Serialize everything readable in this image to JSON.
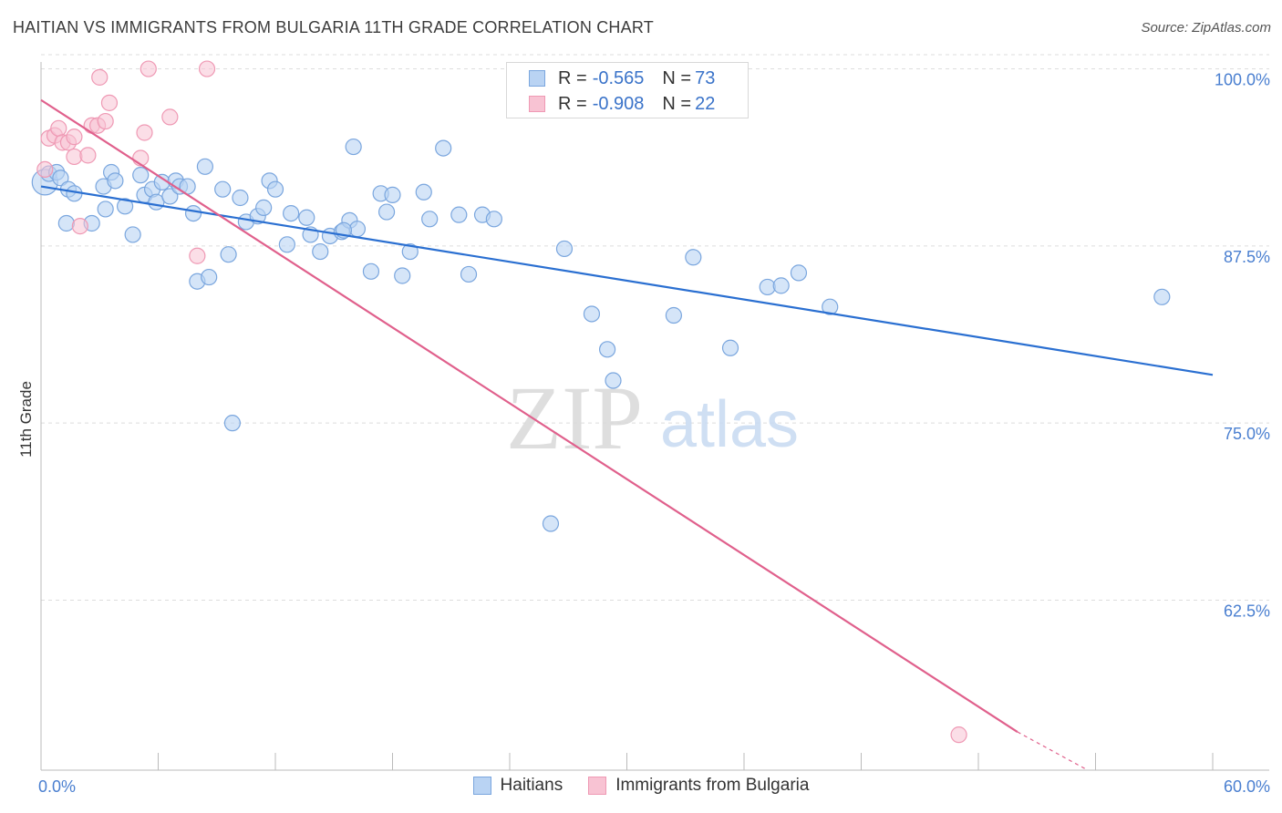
{
  "title": "HAITIAN VS IMMIGRANTS FROM BULGARIA 11TH GRADE CORRELATION CHART",
  "source": "Source: ZipAtlas.com",
  "watermark": {
    "zip": "ZIP",
    "atlas": "atlas"
  },
  "legend": {
    "haitians": {
      "r_label": "R = ",
      "r_value": "-0.565",
      "n_label": "N = ",
      "n_value": "73"
    },
    "bulgaria": {
      "r_label": "R = ",
      "r_value": "-0.908",
      "n_label": "N = ",
      "n_value": "22"
    }
  },
  "colors": {
    "blue_fill": "#b9d3f3",
    "blue_stroke": "#7aa6de",
    "blue_line": "#2a6fd1",
    "pink_fill": "#f8c3d3",
    "pink_stroke": "#ef99b4",
    "pink_line": "#e0608c",
    "axis_text": "#4a7fd0",
    "grid": "#dddddd"
  },
  "chart_data": {
    "type": "scatter",
    "title": "HAITIAN VS IMMIGRANTS FROM BULGARIA 11TH GRADE CORRELATION CHART",
    "xlabel": "",
    "ylabel": "11th Grade",
    "xlim": [
      0,
      60
    ],
    "ylim": [
      50.5,
      101
    ],
    "x_tick_labels": [
      "0.0%",
      "60.0%"
    ],
    "y_ticks": [
      100,
      87.5,
      75,
      62.5
    ],
    "y_tick_labels": [
      "100.0%",
      "87.5%",
      "75.0%",
      "62.5%"
    ],
    "series": [
      {
        "name": "Haitians",
        "r": -0.565,
        "n": 73,
        "trend": {
          "x": [
            0,
            60
          ],
          "y": [
            91.7,
            78.4
          ]
        },
        "points": [
          [
            0.2,
            92.0
          ],
          [
            0.4,
            92.6
          ],
          [
            0.8,
            92.7
          ],
          [
            1.0,
            92.3
          ],
          [
            1.4,
            91.5
          ],
          [
            1.7,
            91.2
          ],
          [
            1.3,
            89.1
          ],
          [
            2.6,
            89.1
          ],
          [
            3.2,
            91.7
          ],
          [
            3.3,
            90.1
          ],
          [
            3.6,
            92.7
          ],
          [
            3.8,
            92.1
          ],
          [
            4.3,
            90.3
          ],
          [
            4.7,
            88.3
          ],
          [
            5.1,
            92.5
          ],
          [
            5.3,
            91.1
          ],
          [
            5.7,
            91.5
          ],
          [
            5.9,
            90.6
          ],
          [
            6.2,
            92.0
          ],
          [
            6.6,
            91.0
          ],
          [
            6.9,
            92.1
          ],
          [
            7.1,
            91.7
          ],
          [
            7.5,
            91.7
          ],
          [
            7.8,
            89.8
          ],
          [
            8.4,
            93.1
          ],
          [
            8.0,
            85.0
          ],
          [
            8.6,
            85.3
          ],
          [
            9.3,
            91.5
          ],
          [
            9.6,
            86.9
          ],
          [
            10.2,
            90.9
          ],
          [
            10.5,
            89.2
          ],
          [
            11.1,
            89.6
          ],
          [
            11.4,
            90.2
          ],
          [
            11.7,
            92.1
          ],
          [
            12.0,
            91.5
          ],
          [
            12.8,
            89.8
          ],
          [
            12.6,
            87.6
          ],
          [
            13.8,
            88.3
          ],
          [
            13.6,
            89.5
          ],
          [
            14.3,
            87.1
          ],
          [
            14.8,
            88.2
          ],
          [
            15.4,
            88.5
          ],
          [
            15.8,
            89.3
          ],
          [
            16.2,
            88.7
          ],
          [
            16.0,
            94.5
          ],
          [
            16.9,
            85.7
          ],
          [
            17.4,
            91.2
          ],
          [
            17.7,
            89.9
          ],
          [
            18.0,
            91.1
          ],
          [
            18.5,
            85.4
          ],
          [
            18.9,
            87.1
          ],
          [
            19.6,
            91.3
          ],
          [
            19.9,
            89.4
          ],
          [
            20.6,
            94.4
          ],
          [
            21.4,
            89.7
          ],
          [
            21.9,
            85.5
          ],
          [
            22.6,
            89.7
          ],
          [
            23.2,
            89.4
          ],
          [
            26.8,
            87.3
          ],
          [
            28.2,
            82.7
          ],
          [
            29.0,
            80.2
          ],
          [
            29.3,
            78.0
          ],
          [
            32.4,
            82.6
          ],
          [
            33.4,
            86.7
          ],
          [
            35.3,
            80.3
          ],
          [
            37.2,
            84.6
          ],
          [
            37.9,
            84.7
          ],
          [
            38.8,
            85.6
          ],
          [
            40.4,
            83.2
          ],
          [
            57.4,
            83.9
          ],
          [
            9.8,
            75.0
          ],
          [
            26.1,
            67.9
          ],
          [
            15.5,
            88.6
          ]
        ]
      },
      {
        "name": "Immigrants from Bulgaria",
        "r": -0.908,
        "n": 22,
        "trend": {
          "x": [
            0,
            50.0
          ],
          "y": [
            97.8,
            53.2
          ]
        },
        "trend_dashed": {
          "x": [
            50.0,
            53.6
          ],
          "y": [
            53.2,
            50.5
          ]
        },
        "points": [
          [
            0.2,
            92.9
          ],
          [
            0.4,
            95.1
          ],
          [
            0.7,
            95.3
          ],
          [
            0.9,
            95.8
          ],
          [
            1.1,
            94.8
          ],
          [
            1.4,
            94.8
          ],
          [
            1.7,
            95.2
          ],
          [
            1.7,
            93.8
          ],
          [
            2.0,
            88.9
          ],
          [
            2.4,
            93.9
          ],
          [
            2.6,
            96.0
          ],
          [
            2.9,
            96.0
          ],
          [
            3.0,
            99.4
          ],
          [
            3.3,
            96.3
          ],
          [
            3.5,
            97.6
          ],
          [
            5.1,
            93.7
          ],
          [
            5.3,
            95.5
          ],
          [
            5.5,
            100.0
          ],
          [
            6.6,
            96.6
          ],
          [
            8.0,
            86.8
          ],
          [
            8.5,
            100.0
          ],
          [
            47.0,
            53.0
          ]
        ]
      }
    ]
  }
}
